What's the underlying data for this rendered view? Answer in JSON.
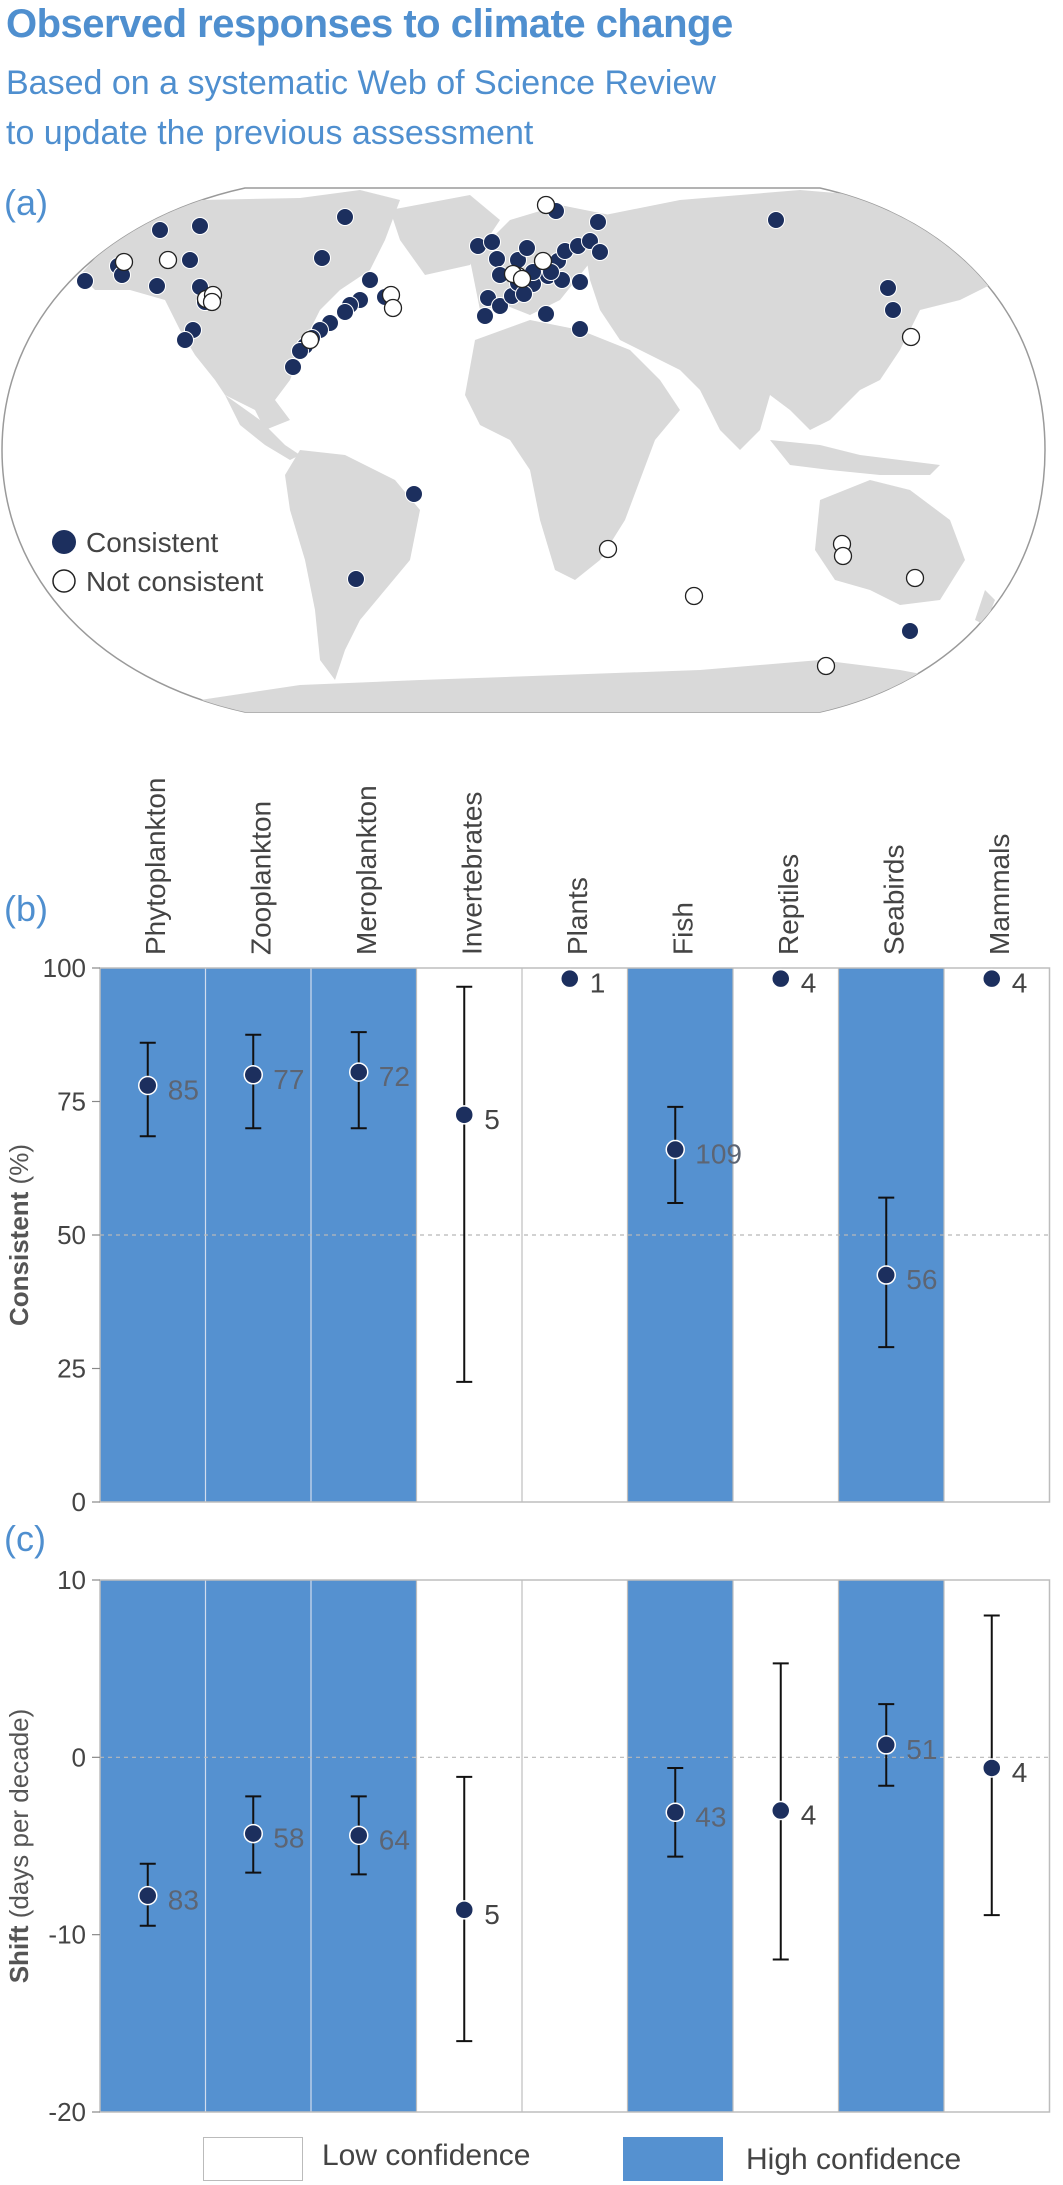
{
  "title": "Observed responses to climate change",
  "subtitle_line1": "Based on a systematic Web of Science Review",
  "subtitle_line2": "to update the previous assessment",
  "panels": {
    "a": "(a)",
    "b": "(b)",
    "c": "(c)"
  },
  "map": {
    "legend_consistent": "Consistent",
    "legend_not_consistent": "Not consistent"
  },
  "colors": {
    "high_confidence": "#5591d0",
    "consistent_dot": "#1c2f5e",
    "land": "#d9d9d9",
    "title": "#4f8fcf"
  },
  "legend": {
    "low": "Low confidence",
    "high": "High confidence"
  },
  "chart_data": [
    {
      "type": "scatter",
      "categories": [
        "Phytoplankton",
        "Zooplankton",
        "Meroplankton",
        "Invertebrates",
        "Plants",
        "Fish",
        "Reptiles",
        "Seabirds",
        "Mammals"
      ],
      "confidence": [
        "high",
        "high",
        "high",
        "low",
        "low",
        "high",
        "low",
        "high",
        "low"
      ],
      "ylabel": "Consistent (%)",
      "ylim": [
        0,
        100
      ],
      "yticks": [
        0,
        25,
        50,
        75,
        100
      ],
      "values": [
        78,
        80,
        80.5,
        72.5,
        98,
        66,
        98,
        42.5,
        98
      ],
      "err_low": [
        68.5,
        70,
        70,
        22.5,
        null,
        56,
        null,
        29,
        null
      ],
      "err_high": [
        86,
        87.5,
        88,
        96.5,
        null,
        74,
        null,
        57,
        null
      ],
      "n_labels": [
        "85",
        "77",
        "72",
        "5",
        "1",
        "109",
        "4",
        "56",
        "4"
      ]
    },
    {
      "type": "scatter",
      "categories": [
        "Phytoplankton",
        "Zooplankton",
        "Meroplankton",
        "Invertebrates",
        "Plants",
        "Fish",
        "Reptiles",
        "Seabirds",
        "Mammals"
      ],
      "confidence": [
        "high",
        "high",
        "high",
        "low",
        "low",
        "high",
        "low",
        "high",
        "low"
      ],
      "ylabel": "Shift (days per decade)",
      "ylim": [
        -20,
        10
      ],
      "yticks": [
        -20,
        -10,
        0,
        10
      ],
      "values": [
        -7.8,
        -4.3,
        -4.4,
        -8.6,
        null,
        -3.1,
        -3,
        0.7,
        -0.6
      ],
      "err_low": [
        -9.5,
        -6.5,
        -6.6,
        -16,
        null,
        -5.6,
        -11.4,
        -1.6,
        -8.9
      ],
      "err_high": [
        -6,
        -2.2,
        -2.2,
        -1.1,
        null,
        -0.6,
        5.3,
        3,
        8
      ],
      "n_labels": [
        "83",
        "58",
        "64",
        "5",
        "",
        "43",
        "4",
        "51",
        "4"
      ]
    }
  ]
}
